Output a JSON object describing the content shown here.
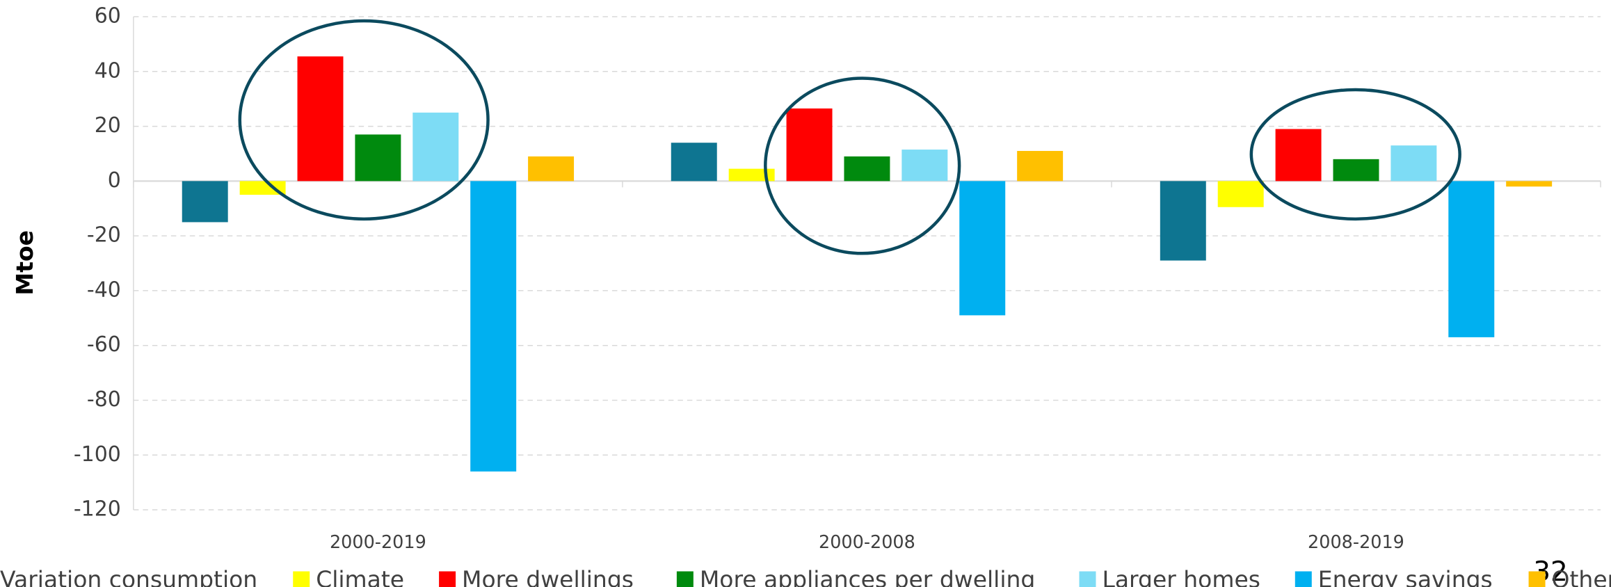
{
  "chart_data": {
    "type": "bar",
    "y_axis_label": "Mtoe",
    "categories": [
      "2000-2019",
      "2000-2008",
      "2008-2019"
    ],
    "series": [
      {
        "name": "Variation consumption",
        "color": "#0e7591",
        "values": [
          -15,
          14,
          -29
        ]
      },
      {
        "name": "Climate",
        "color": "#ffff00",
        "values": [
          -5,
          4.5,
          -9.5
        ]
      },
      {
        "name": "More dwellings",
        "color": "#ff0000",
        "values": [
          45.5,
          26.5,
          19
        ]
      },
      {
        "name": "More appliances per dwelling",
        "color": "#008a0e",
        "values": [
          17,
          9,
          8
        ]
      },
      {
        "name": "Larger homes",
        "color": "#7ddcf5",
        "values": [
          25,
          11.5,
          13
        ]
      },
      {
        "name": "Energy savings",
        "color": "#00b0f0",
        "values": [
          -106,
          -49,
          -57
        ]
      },
      {
        "name": "Other",
        "color": "#ffc000",
        "values": [
          9,
          11,
          -2
        ]
      }
    ],
    "ylim": [
      -120,
      60
    ],
    "yticks": [
      -120,
      -100,
      -80,
      -60,
      -40,
      -20,
      0,
      20,
      40,
      60
    ],
    "grid": true,
    "legend": "bottom",
    "page_number": "32"
  }
}
